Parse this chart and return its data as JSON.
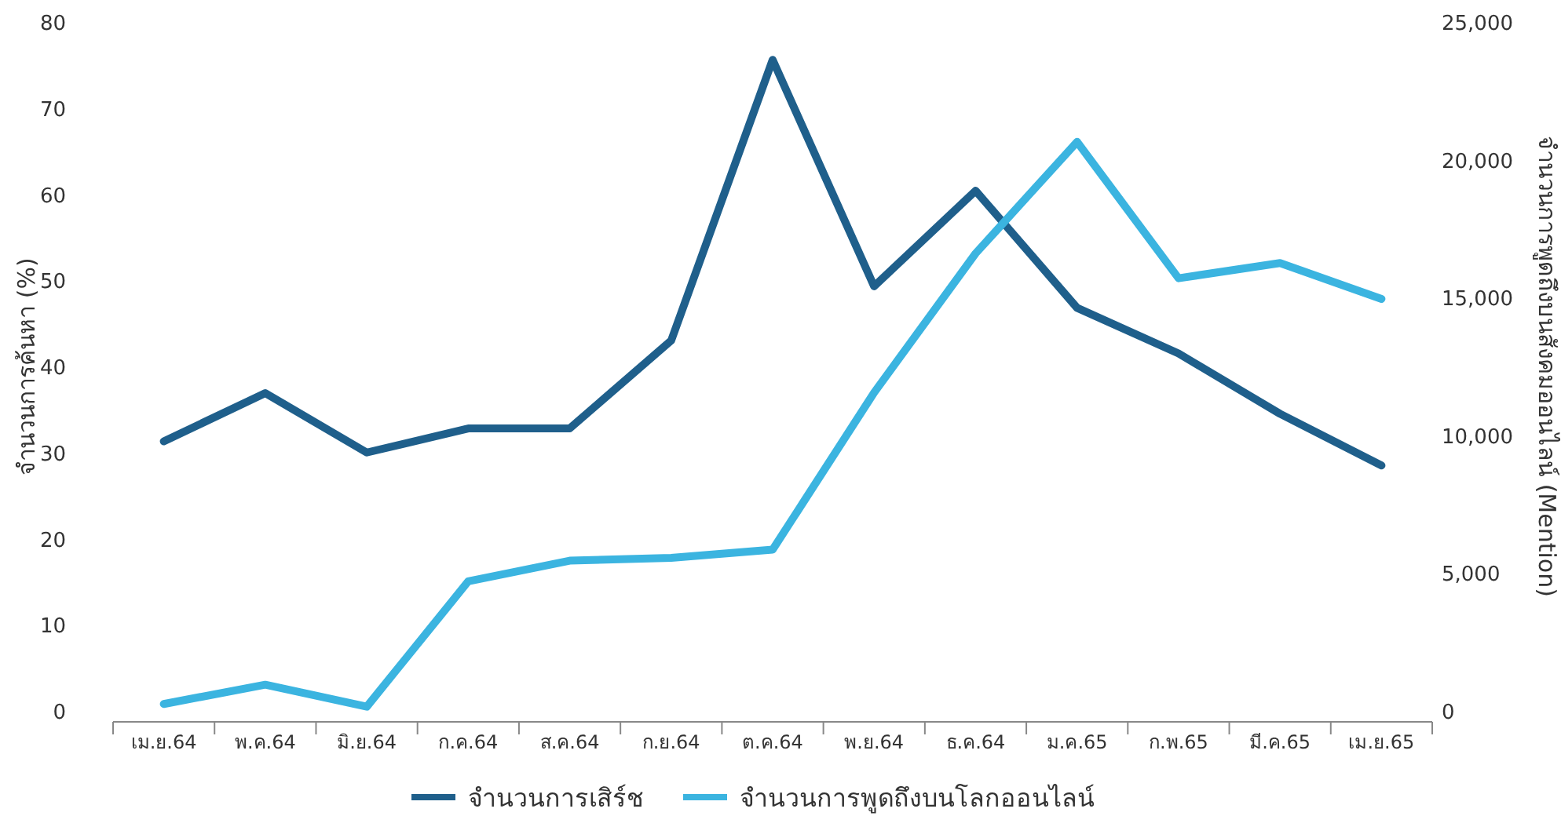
{
  "chart_data": {
    "type": "line",
    "categories": [
      "เม.ย.64",
      "พ.ค.64",
      "มิ.ย.64",
      "ก.ค.64",
      "ส.ค.64",
      "ก.ย.64",
      "ต.ค.64",
      "พ.ย.64",
      "ธ.ค.64",
      "ม.ค.65",
      "ก.พ.65",
      "มี.ค.65",
      "เม.ย.65"
    ],
    "series": [
      {
        "name": "จำนวนการเสิร์ช",
        "color": "#1f5f8b",
        "values": [
          31.3,
          36.9,
          30,
          32.8,
          32.8,
          43,
          75.6,
          49.3,
          60.4,
          46.8,
          41.5,
          34.5,
          28.5
        ]
      },
      {
        "name": "จำนวนการพูดถึงบนโลกออนไลน์",
        "color": "#3bb4e0",
        "axis": "y2",
        "values": [
          250,
          950,
          150,
          4700,
          5450,
          5550,
          5850,
          11550,
          16600,
          20650,
          15700,
          16250,
          14950
        ]
      }
    ],
    "ylabel": "จำนวนการค้นหา (%)",
    "y2label": "จำนวนการพูดถึงบนสังคมออนไลน์ (Mention)",
    "ylim": [
      0,
      80
    ],
    "yticks": [
      0,
      10,
      20,
      30,
      40,
      50,
      60,
      70,
      80
    ],
    "y2lim": [
      0,
      25000
    ],
    "y2ticks": [
      0,
      {
        "value": 5000,
        "label": "5,000"
      },
      {
        "value": 10000,
        "label": "10,000"
      },
      {
        "value": 15000,
        "label": "15,000"
      },
      {
        "value": 20000,
        "label": "20,000"
      },
      {
        "value": 25000,
        "label": "25,000"
      }
    ],
    "legend": "bottom",
    "marker": "none",
    "line_style": "solid"
  }
}
